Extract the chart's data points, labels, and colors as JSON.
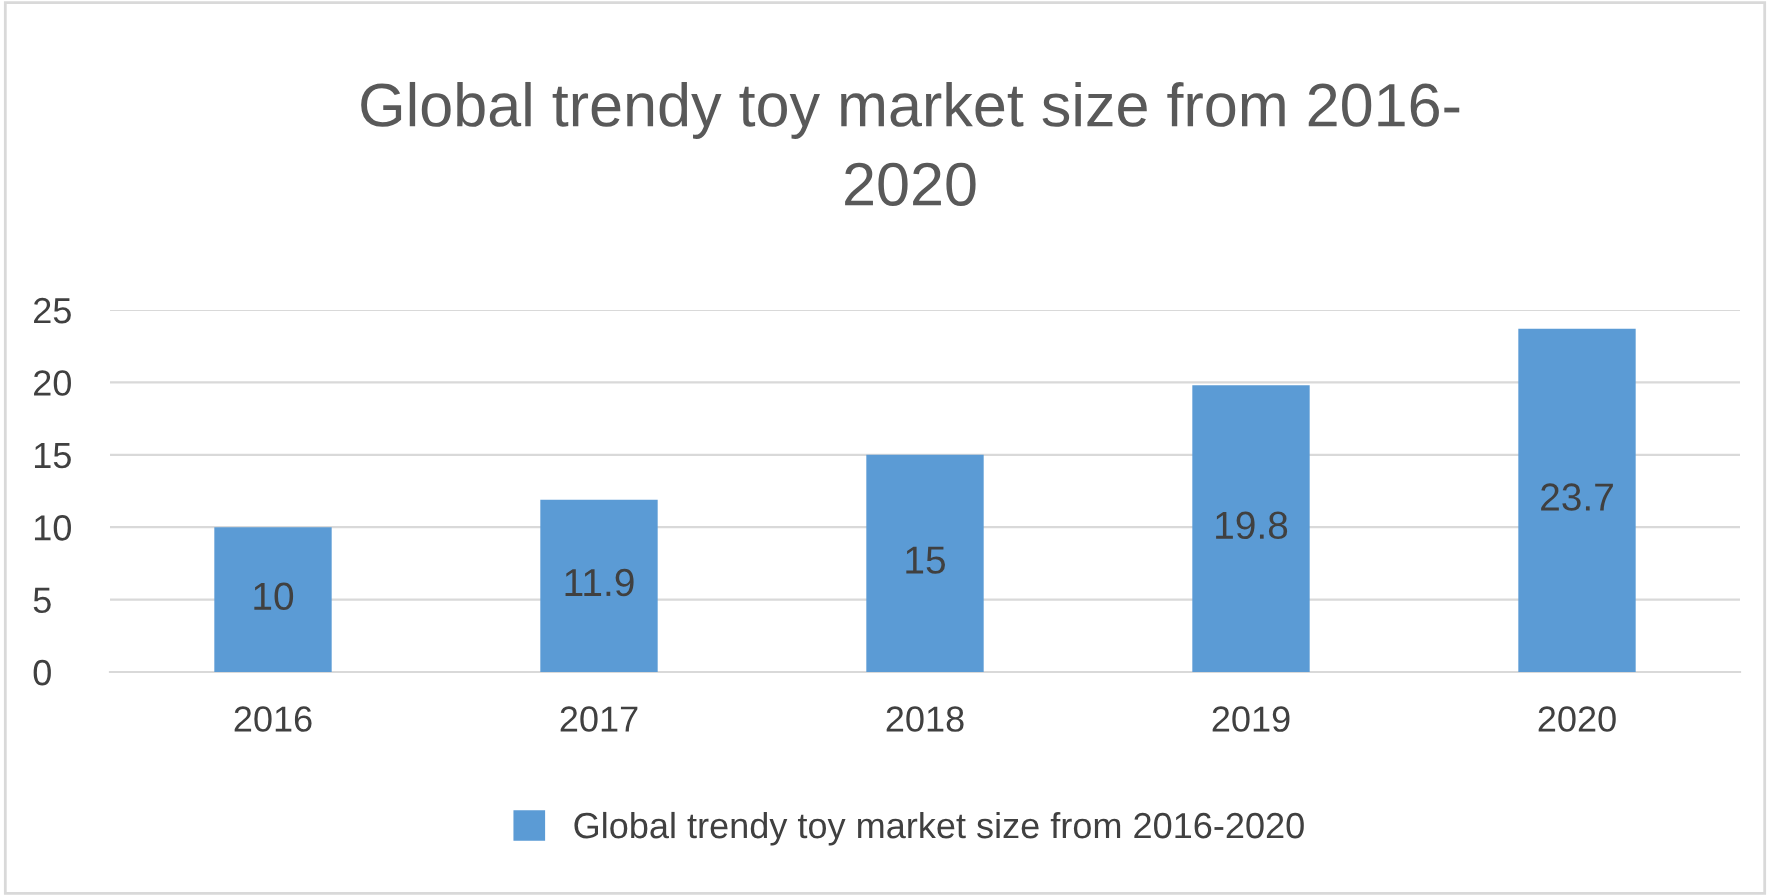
{
  "chart_data": {
    "type": "bar",
    "title": "Global trendy toy market size from 2016-\n2020",
    "categories": [
      "2016",
      "2017",
      "2018",
      "2019",
      "2020"
    ],
    "series": [
      {
        "name": "Global trendy toy market size from 2016-2020",
        "color": "#5b9bd5",
        "values": [
          10,
          11.9,
          15,
          19.8,
          23.7
        ]
      }
    ],
    "ylim": [
      0,
      25
    ],
    "yticks": [
      0,
      5,
      10,
      15,
      20,
      25
    ],
    "grid": "y",
    "legend": "bottom",
    "data_labels": true
  }
}
